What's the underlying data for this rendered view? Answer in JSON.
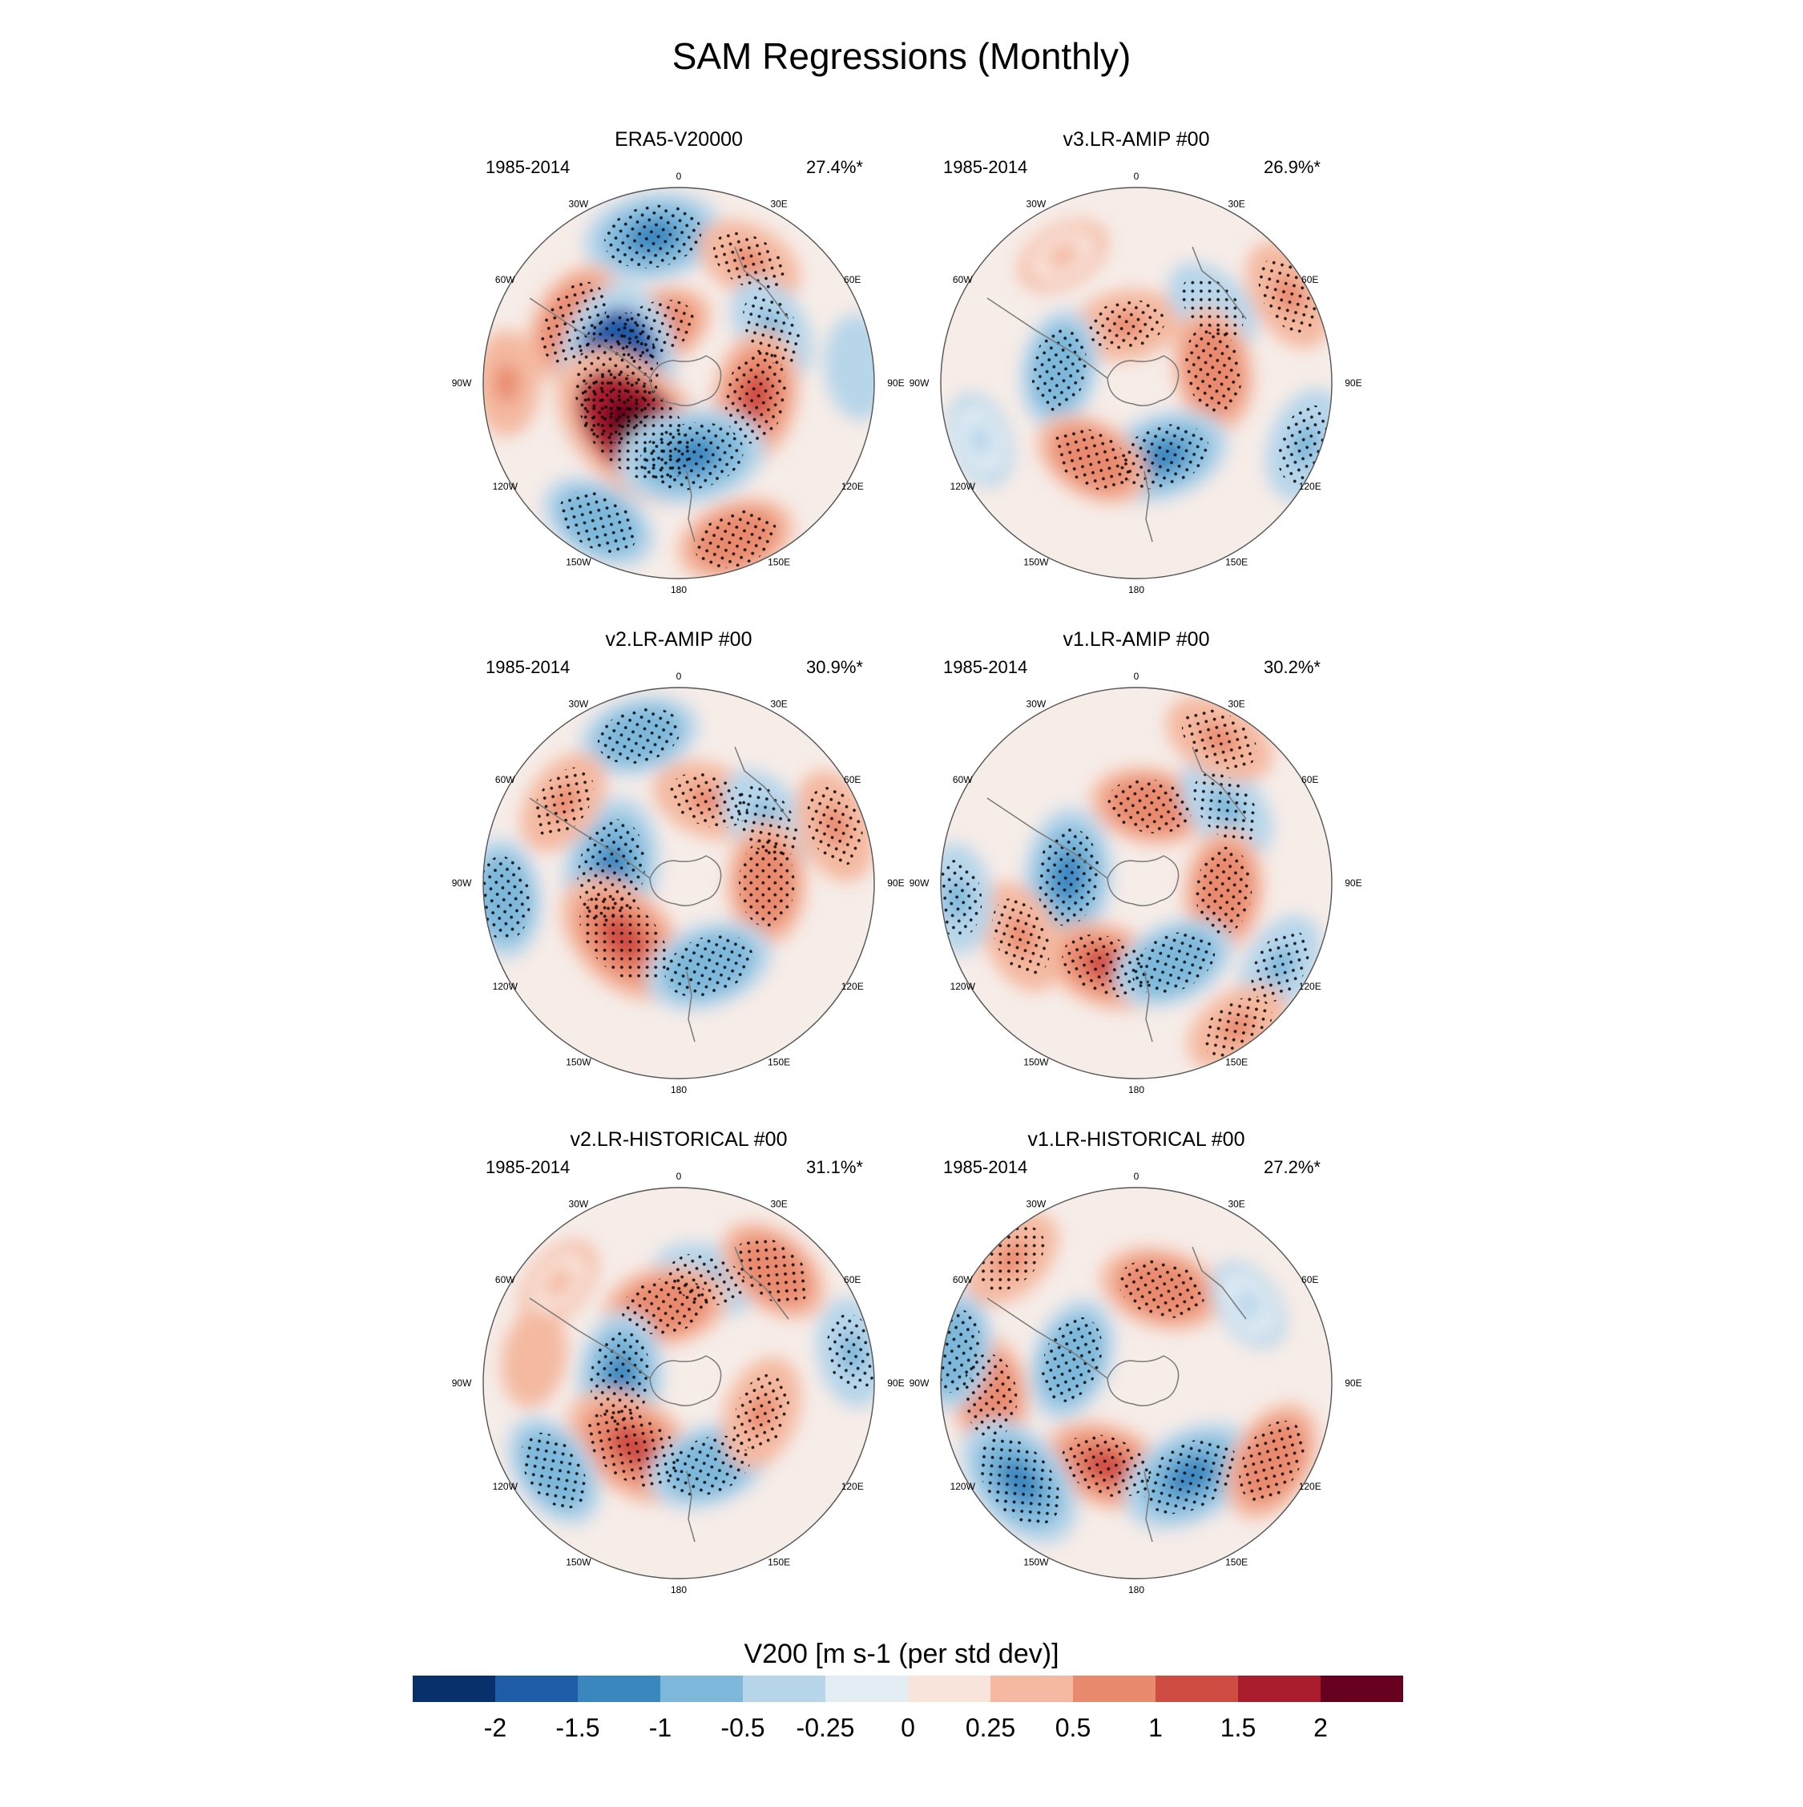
{
  "chart_data": {
    "type": "heatmap",
    "title": "SAM Regressions (Monthly)",
    "colorbar": {
      "label": "V200 [m s-1 (per std dev)]",
      "tick_labels": [
        "-2",
        "-1.5",
        "-1",
        "-0.5",
        "-0.25",
        "0",
        "0.25",
        "0.5",
        "1",
        "1.5",
        "2"
      ],
      "levels": [
        -2,
        -1.5,
        -1,
        -0.5,
        -0.25,
        0,
        0.25,
        0.5,
        1,
        1.5,
        2
      ],
      "colors": [
        "#08306b",
        "#1f5ca8",
        "#3a87c0",
        "#7db8da",
        "#b7d6ea",
        "#e3edf4",
        "#f9e4dc",
        "#f4b9a0",
        "#e98a6e",
        "#cf4c42",
        "#a91d2d",
        "#67001f"
      ]
    },
    "lon_labels": [
      "0",
      "30E",
      "60E",
      "90E",
      "120E",
      "150E",
      "180",
      "150W",
      "120W",
      "90W",
      "60W",
      "30W"
    ],
    "panels": [
      {
        "title": "ERA5-V20000",
        "period": "1985-2014",
        "variance": "27.4%*",
        "anomalies": [
          {
            "lon": 350,
            "r": 0.76,
            "value": -1.2,
            "sig": true
          },
          {
            "lon": 30,
            "r": 0.72,
            "value": 0.6,
            "sig": true
          },
          {
            "lon": 300,
            "r": 0.62,
            "value": 0.9,
            "sig": true
          },
          {
            "lon": 335,
            "r": 0.3,
            "value": 0.8,
            "sig": true
          },
          {
            "lon": 60,
            "r": 0.55,
            "value": -0.6,
            "sig": true
          },
          {
            "lon": 275,
            "r": 0.32,
            "value": -2.2,
            "sig": true
          },
          {
            "lon": 100,
            "r": 0.4,
            "value": 1.1,
            "sig": true
          },
          {
            "lon": 225,
            "r": 0.32,
            "value": 2.2,
            "sig": true
          },
          {
            "lon": 170,
            "r": 0.38,
            "value": -1.4,
            "sig": true
          },
          {
            "lon": 210,
            "r": 0.82,
            "value": -0.8,
            "sig": true
          },
          {
            "lon": 160,
            "r": 0.85,
            "value": 0.8,
            "sig": true
          },
          {
            "lon": 270,
            "r": 0.88,
            "value": 0.5,
            "sig": false
          },
          {
            "lon": 85,
            "r": 0.92,
            "value": -0.5,
            "sig": false
          }
        ]
      },
      {
        "title": "v3.LR-AMIP  #00",
        "period": "1985-2014",
        "variance": "26.9%*",
        "anomalies": [
          {
            "lon": 350,
            "r": 0.3,
            "value": 0.6,
            "sig": true
          },
          {
            "lon": 45,
            "r": 0.55,
            "value": -0.5,
            "sig": true
          },
          {
            "lon": 60,
            "r": 0.9,
            "value": 0.7,
            "sig": true
          },
          {
            "lon": 80,
            "r": 0.4,
            "value": 0.9,
            "sig": true
          },
          {
            "lon": 280,
            "r": 0.4,
            "value": -0.8,
            "sig": true
          },
          {
            "lon": 160,
            "r": 0.4,
            "value": -1.1,
            "sig": true
          },
          {
            "lon": 210,
            "r": 0.45,
            "value": 0.8,
            "sig": true
          },
          {
            "lon": 110,
            "r": 0.92,
            "value": -0.7,
            "sig": true
          },
          {
            "lon": 330,
            "r": 0.75,
            "value": 0.3,
            "sig": false
          },
          {
            "lon": 250,
            "r": 0.85,
            "value": -0.3,
            "sig": false
          }
        ]
      },
      {
        "title": "v2.LR-AMIP  #00",
        "period": "1985-2014",
        "variance": "30.9%*",
        "anomalies": [
          {
            "lon": 345,
            "r": 0.78,
            "value": -0.8,
            "sig": true
          },
          {
            "lon": 20,
            "r": 0.45,
            "value": 0.7,
            "sig": true
          },
          {
            "lon": 55,
            "r": 0.55,
            "value": -0.7,
            "sig": true
          },
          {
            "lon": 70,
            "r": 0.85,
            "value": 0.7,
            "sig": true
          },
          {
            "lon": 90,
            "r": 0.45,
            "value": 0.9,
            "sig": true
          },
          {
            "lon": 280,
            "r": 0.35,
            "value": -1.4,
            "sig": true
          },
          {
            "lon": 225,
            "r": 0.4,
            "value": 1.4,
            "sig": true
          },
          {
            "lon": 160,
            "r": 0.45,
            "value": -1.0,
            "sig": true
          },
          {
            "lon": 265,
            "r": 0.9,
            "value": -0.8,
            "sig": true
          },
          {
            "lon": 305,
            "r": 0.72,
            "value": 0.6,
            "sig": true
          }
        ]
      },
      {
        "title": "v1.LR-AMIP  #00",
        "period": "1985-2014",
        "variance": "30.2%*",
        "anomalies": [
          {
            "lon": 10,
            "r": 0.4,
            "value": 0.8,
            "sig": true
          },
          {
            "lon": 50,
            "r": 0.6,
            "value": -0.7,
            "sig": true
          },
          {
            "lon": 30,
            "r": 0.85,
            "value": 0.7,
            "sig": true
          },
          {
            "lon": 95,
            "r": 0.45,
            "value": 0.9,
            "sig": true
          },
          {
            "lon": 275,
            "r": 0.35,
            "value": -1.2,
            "sig": true
          },
          {
            "lon": 200,
            "r": 0.45,
            "value": 1.0,
            "sig": true
          },
          {
            "lon": 155,
            "r": 0.45,
            "value": -0.9,
            "sig": true
          },
          {
            "lon": 245,
            "r": 0.65,
            "value": 0.7,
            "sig": true
          },
          {
            "lon": 265,
            "r": 0.92,
            "value": -0.6,
            "sig": true
          },
          {
            "lon": 120,
            "r": 0.85,
            "value": -0.6,
            "sig": true
          },
          {
            "lon": 145,
            "r": 0.9,
            "value": 0.6,
            "sig": true
          }
        ]
      },
      {
        "title": "v2.LR-HISTORICAL  #00",
        "period": "1985-2014",
        "variance": "31.1%*",
        "anomalies": [
          {
            "lon": 15,
            "r": 0.55,
            "value": -0.6,
            "sig": true
          },
          {
            "lon": 40,
            "r": 0.75,
            "value": 0.8,
            "sig": true
          },
          {
            "lon": 350,
            "r": 0.4,
            "value": 0.9,
            "sig": true
          },
          {
            "lon": 80,
            "r": 0.9,
            "value": -0.6,
            "sig": true
          },
          {
            "lon": 275,
            "r": 0.3,
            "value": -1.1,
            "sig": true
          },
          {
            "lon": 215,
            "r": 0.4,
            "value": 1.4,
            "sig": true
          },
          {
            "lon": 160,
            "r": 0.45,
            "value": -0.9,
            "sig": true
          },
          {
            "lon": 110,
            "r": 0.45,
            "value": 0.7,
            "sig": true
          },
          {
            "lon": 235,
            "r": 0.78,
            "value": -0.8,
            "sig": true
          },
          {
            "lon": 280,
            "r": 0.75,
            "value": 0.4,
            "sig": false
          },
          {
            "lon": 310,
            "r": 0.8,
            "value": 0.3,
            "sig": false
          }
        ]
      },
      {
        "title": "v1.LR-HISTORICAL  #00",
        "period": "1985-2014",
        "variance": "27.2%*",
        "anomalies": [
          {
            "lon": 15,
            "r": 0.5,
            "value": 0.9,
            "sig": true
          },
          {
            "lon": 55,
            "r": 0.7,
            "value": -0.3,
            "sig": false
          },
          {
            "lon": 290,
            "r": 0.35,
            "value": -0.9,
            "sig": true
          },
          {
            "lon": 265,
            "r": 0.75,
            "value": 0.8,
            "sig": true
          },
          {
            "lon": 280,
            "r": 0.95,
            "value": -0.8,
            "sig": true
          },
          {
            "lon": 200,
            "r": 0.45,
            "value": 1.0,
            "sig": true
          },
          {
            "lon": 150,
            "r": 0.55,
            "value": -1.3,
            "sig": true
          },
          {
            "lon": 120,
            "r": 0.8,
            "value": 0.9,
            "sig": true
          },
          {
            "lon": 230,
            "r": 0.78,
            "value": -1.3,
            "sig": true
          },
          {
            "lon": 315,
            "r": 0.9,
            "value": 0.6,
            "sig": true
          }
        ]
      }
    ]
  }
}
